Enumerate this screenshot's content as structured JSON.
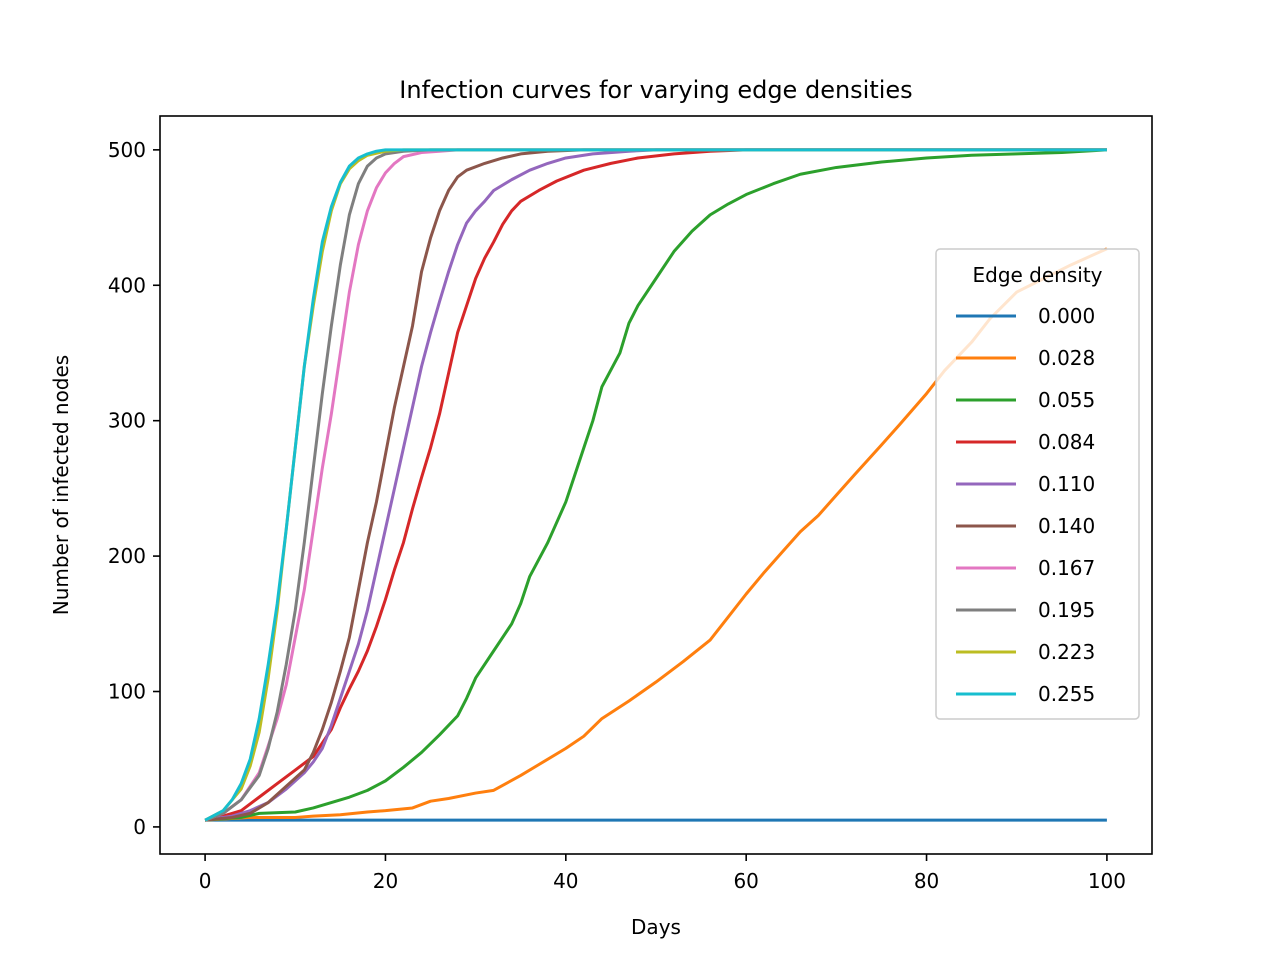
{
  "chart_data": {
    "type": "line",
    "title": "Infection curves for varying edge densities",
    "xlabel": "Days",
    "ylabel": "Number of infected nodes",
    "xlim": [
      -5,
      105
    ],
    "ylim": [
      -20,
      525
    ],
    "xticks": [
      0,
      20,
      40,
      60,
      80,
      100
    ],
    "yticks": [
      0,
      100,
      200,
      300,
      400,
      500
    ],
    "xtick_labels": [
      "0",
      "20",
      "40",
      "60",
      "80",
      "100"
    ],
    "ytick_labels": [
      "0",
      "100",
      "200",
      "300",
      "400",
      "500"
    ],
    "grid": false,
    "legend": {
      "title": "Edge density",
      "placement": "center-right"
    },
    "series": [
      {
        "name": "0.000",
        "color": "#1f77b4",
        "points": [
          [
            0,
            5
          ],
          [
            100,
            5
          ]
        ]
      },
      {
        "name": "0.028",
        "color": "#ff7f0e",
        "points": [
          [
            0,
            5
          ],
          [
            5,
            7
          ],
          [
            10,
            7
          ],
          [
            12,
            8
          ],
          [
            15,
            9
          ],
          [
            18,
            11
          ],
          [
            20,
            12
          ],
          [
            23,
            14
          ],
          [
            25,
            19
          ],
          [
            27,
            21
          ],
          [
            30,
            25
          ],
          [
            32,
            27
          ],
          [
            35,
            38
          ],
          [
            37,
            46
          ],
          [
            40,
            58
          ],
          [
            42,
            67
          ],
          [
            44,
            80
          ],
          [
            47,
            93
          ],
          [
            50,
            107
          ],
          [
            53,
            122
          ],
          [
            56,
            138
          ],
          [
            58,
            155
          ],
          [
            60,
            172
          ],
          [
            62,
            188
          ],
          [
            64,
            203
          ],
          [
            66,
            218
          ],
          [
            68,
            230
          ],
          [
            70,
            245
          ],
          [
            72,
            260
          ],
          [
            75,
            282
          ],
          [
            77,
            297
          ],
          [
            80,
            320
          ],
          [
            82,
            337
          ],
          [
            85,
            358
          ],
          [
            87,
            375
          ],
          [
            90,
            395
          ],
          [
            93,
            405
          ],
          [
            96,
            415
          ],
          [
            100,
            427
          ]
        ]
      },
      {
        "name": "0.055",
        "color": "#2ca02c",
        "points": [
          [
            0,
            5
          ],
          [
            4,
            7
          ],
          [
            6,
            10
          ],
          [
            10,
            11
          ],
          [
            12,
            14
          ],
          [
            14,
            18
          ],
          [
            16,
            22
          ],
          [
            18,
            27
          ],
          [
            20,
            34
          ],
          [
            22,
            44
          ],
          [
            24,
            55
          ],
          [
            26,
            68
          ],
          [
            28,
            82
          ],
          [
            29,
            95
          ],
          [
            30,
            110
          ],
          [
            32,
            130
          ],
          [
            34,
            150
          ],
          [
            35,
            165
          ],
          [
            36,
            185
          ],
          [
            38,
            210
          ],
          [
            40,
            240
          ],
          [
            41,
            260
          ],
          [
            42,
            280
          ],
          [
            43,
            300
          ],
          [
            44,
            325
          ],
          [
            46,
            350
          ],
          [
            47,
            372
          ],
          [
            48,
            385
          ],
          [
            50,
            405
          ],
          [
            52,
            425
          ],
          [
            54,
            440
          ],
          [
            56,
            452
          ],
          [
            58,
            460
          ],
          [
            60,
            467
          ],
          [
            63,
            475
          ],
          [
            66,
            482
          ],
          [
            70,
            487
          ],
          [
            75,
            491
          ],
          [
            80,
            494
          ],
          [
            85,
            496
          ],
          [
            90,
            497
          ],
          [
            95,
            498
          ],
          [
            100,
            500
          ]
        ]
      },
      {
        "name": "0.084",
        "color": "#d62728",
        "points": [
          [
            0,
            5
          ],
          [
            2,
            8
          ],
          [
            4,
            12
          ],
          [
            6,
            22
          ],
          [
            8,
            32
          ],
          [
            10,
            42
          ],
          [
            12,
            52
          ],
          [
            13,
            62
          ],
          [
            14,
            72
          ],
          [
            15,
            88
          ],
          [
            16,
            102
          ],
          [
            17,
            115
          ],
          [
            18,
            130
          ],
          [
            19,
            148
          ],
          [
            20,
            168
          ],
          [
            21,
            190
          ],
          [
            22,
            210
          ],
          [
            23,
            235
          ],
          [
            24,
            258
          ],
          [
            25,
            280
          ],
          [
            26,
            305
          ],
          [
            27,
            335
          ],
          [
            28,
            365
          ],
          [
            29,
            385
          ],
          [
            30,
            405
          ],
          [
            31,
            420
          ],
          [
            32,
            432
          ],
          [
            33,
            445
          ],
          [
            34,
            455
          ],
          [
            35,
            462
          ],
          [
            37,
            470
          ],
          [
            39,
            477
          ],
          [
            42,
            485
          ],
          [
            45,
            490
          ],
          [
            48,
            494
          ],
          [
            52,
            497
          ],
          [
            56,
            499
          ],
          [
            60,
            500
          ],
          [
            100,
            500
          ]
        ]
      },
      {
        "name": "0.110",
        "color": "#9467bd",
        "points": [
          [
            0,
            5
          ],
          [
            3,
            8
          ],
          [
            5,
            12
          ],
          [
            7,
            18
          ],
          [
            9,
            28
          ],
          [
            11,
            40
          ],
          [
            12,
            48
          ],
          [
            13,
            58
          ],
          [
            14,
            75
          ],
          [
            15,
            95
          ],
          [
            16,
            115
          ],
          [
            17,
            135
          ],
          [
            18,
            160
          ],
          [
            19,
            190
          ],
          [
            20,
            220
          ],
          [
            21,
            250
          ],
          [
            22,
            280
          ],
          [
            23,
            310
          ],
          [
            24,
            340
          ],
          [
            25,
            365
          ],
          [
            26,
            388
          ],
          [
            27,
            410
          ],
          [
            28,
            430
          ],
          [
            29,
            446
          ],
          [
            30,
            455
          ],
          [
            31,
            462
          ],
          [
            32,
            470
          ],
          [
            34,
            478
          ],
          [
            36,
            485
          ],
          [
            38,
            490
          ],
          [
            40,
            494
          ],
          [
            43,
            497
          ],
          [
            47,
            499
          ],
          [
            50,
            500
          ],
          [
            100,
            500
          ]
        ]
      },
      {
        "name": "0.140",
        "color": "#8c564b",
        "points": [
          [
            0,
            5
          ],
          [
            3,
            7
          ],
          [
            5,
            10
          ],
          [
            7,
            18
          ],
          [
            9,
            30
          ],
          [
            11,
            42
          ],
          [
            12,
            55
          ],
          [
            13,
            72
          ],
          [
            14,
            92
          ],
          [
            15,
            115
          ],
          [
            16,
            140
          ],
          [
            17,
            175
          ],
          [
            18,
            210
          ],
          [
            19,
            240
          ],
          [
            20,
            275
          ],
          [
            21,
            310
          ],
          [
            22,
            340
          ],
          [
            23,
            370
          ],
          [
            24,
            410
          ],
          [
            25,
            435
          ],
          [
            26,
            455
          ],
          [
            27,
            470
          ],
          [
            28,
            480
          ],
          [
            29,
            485
          ],
          [
            31,
            490
          ],
          [
            33,
            494
          ],
          [
            35,
            497
          ],
          [
            38,
            499
          ],
          [
            42,
            500
          ],
          [
            100,
            500
          ]
        ]
      },
      {
        "name": "0.167",
        "color": "#e377c2",
        "points": [
          [
            0,
            5
          ],
          [
            2,
            10
          ],
          [
            4,
            20
          ],
          [
            6,
            40
          ],
          [
            7,
            60
          ],
          [
            8,
            80
          ],
          [
            9,
            105
          ],
          [
            10,
            140
          ],
          [
            11,
            175
          ],
          [
            12,
            220
          ],
          [
            13,
            265
          ],
          [
            14,
            305
          ],
          [
            15,
            350
          ],
          [
            16,
            395
          ],
          [
            17,
            430
          ],
          [
            18,
            455
          ],
          [
            19,
            472
          ],
          [
            20,
            483
          ],
          [
            21,
            490
          ],
          [
            22,
            495
          ],
          [
            24,
            498
          ],
          [
            26,
            499
          ],
          [
            28,
            500
          ],
          [
            100,
            500
          ]
        ]
      },
      {
        "name": "0.195",
        "color": "#7f7f7f",
        "points": [
          [
            0,
            5
          ],
          [
            2,
            10
          ],
          [
            4,
            20
          ],
          [
            6,
            38
          ],
          [
            7,
            58
          ],
          [
            8,
            85
          ],
          [
            9,
            120
          ],
          [
            10,
            160
          ],
          [
            11,
            210
          ],
          [
            12,
            265
          ],
          [
            13,
            320
          ],
          [
            14,
            370
          ],
          [
            15,
            415
          ],
          [
            16,
            452
          ],
          [
            17,
            475
          ],
          [
            18,
            488
          ],
          [
            19,
            494
          ],
          [
            20,
            497
          ],
          [
            22,
            499
          ],
          [
            25,
            500
          ],
          [
            100,
            500
          ]
        ]
      },
      {
        "name": "0.223",
        "color": "#bcbd22",
        "points": [
          [
            0,
            5
          ],
          [
            2,
            12
          ],
          [
            4,
            28
          ],
          [
            5,
            45
          ],
          [
            6,
            70
          ],
          [
            7,
            110
          ],
          [
            8,
            160
          ],
          [
            9,
            220
          ],
          [
            10,
            280
          ],
          [
            11,
            340
          ],
          [
            12,
            385
          ],
          [
            13,
            425
          ],
          [
            14,
            455
          ],
          [
            15,
            475
          ],
          [
            16,
            486
          ],
          [
            17,
            492
          ],
          [
            18,
            496
          ],
          [
            20,
            499
          ],
          [
            22,
            500
          ],
          [
            100,
            500
          ]
        ]
      },
      {
        "name": "0.255",
        "color": "#17becf",
        "points": [
          [
            0,
            5
          ],
          [
            2,
            12
          ],
          [
            3,
            20
          ],
          [
            4,
            32
          ],
          [
            5,
            50
          ],
          [
            6,
            80
          ],
          [
            7,
            120
          ],
          [
            8,
            165
          ],
          [
            9,
            220
          ],
          [
            10,
            280
          ],
          [
            11,
            340
          ],
          [
            12,
            390
          ],
          [
            13,
            432
          ],
          [
            14,
            458
          ],
          [
            15,
            476
          ],
          [
            16,
            488
          ],
          [
            17,
            494
          ],
          [
            18,
            497
          ],
          [
            19,
            499
          ],
          [
            20,
            500
          ],
          [
            100,
            500
          ]
        ]
      }
    ]
  }
}
